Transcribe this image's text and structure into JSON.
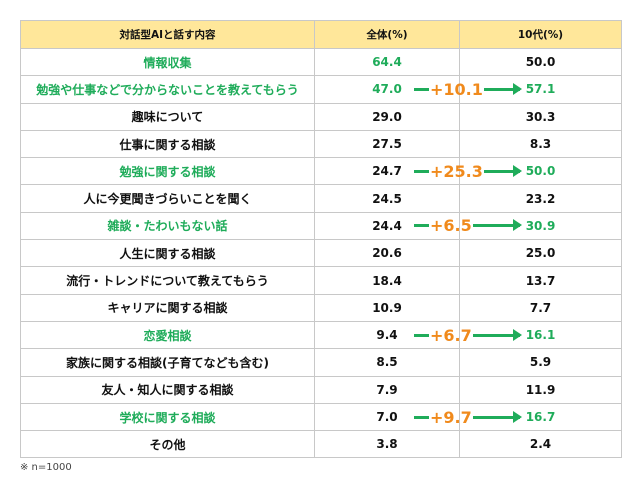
{
  "chart_data": {
    "type": "table",
    "columns": [
      "対話型AIと話す内容",
      "全体(%)",
      "10代(%)"
    ],
    "rows": [
      {
        "label": "情報収集",
        "all": "64.4",
        "teen": "50.0",
        "highlight_label": true,
        "highlight_all": true,
        "highlight_teen": false,
        "diff": ""
      },
      {
        "label": "勉強や仕事などで分からないことを教えてもらう",
        "all": "47.0",
        "teen": "57.1",
        "highlight_label": true,
        "highlight_all": true,
        "highlight_teen": true,
        "diff": "+10.1"
      },
      {
        "label": "趣味について",
        "all": "29.0",
        "teen": "30.3",
        "highlight_label": false,
        "highlight_all": false,
        "highlight_teen": false,
        "diff": ""
      },
      {
        "label": "仕事に関する相談",
        "all": "27.5",
        "teen": "8.3",
        "highlight_label": false,
        "highlight_all": false,
        "highlight_teen": false,
        "diff": ""
      },
      {
        "label": "勉強に関する相談",
        "all": "24.7",
        "teen": "50.0",
        "highlight_label": true,
        "highlight_all": false,
        "highlight_teen": true,
        "diff": "+25.3"
      },
      {
        "label": "人に今更聞きづらいことを聞く",
        "all": "24.5",
        "teen": "23.2",
        "highlight_label": false,
        "highlight_all": false,
        "highlight_teen": false,
        "diff": ""
      },
      {
        "label": "雑談・たわいもない話",
        "all": "24.4",
        "teen": "30.9",
        "highlight_label": true,
        "highlight_all": false,
        "highlight_teen": true,
        "diff": "+6.5"
      },
      {
        "label": "人生に関する相談",
        "all": "20.6",
        "teen": "25.0",
        "highlight_label": false,
        "highlight_all": false,
        "highlight_teen": false,
        "diff": ""
      },
      {
        "label": "流行・トレンドについて教えてもらう",
        "all": "18.4",
        "teen": "13.7",
        "highlight_label": false,
        "highlight_all": false,
        "highlight_teen": false,
        "diff": ""
      },
      {
        "label": "キャリアに関する相談",
        "all": "10.9",
        "teen": "7.7",
        "highlight_label": false,
        "highlight_all": false,
        "highlight_teen": false,
        "diff": ""
      },
      {
        "label": "恋愛相談",
        "all": "9.4",
        "teen": "16.1",
        "highlight_label": true,
        "highlight_all": false,
        "highlight_teen": true,
        "diff": "+6.7"
      },
      {
        "label": "家族に関する相談(子育てなども含む)",
        "all": "8.5",
        "teen": "5.9",
        "highlight_label": false,
        "highlight_all": false,
        "highlight_teen": false,
        "diff": ""
      },
      {
        "label": "友人・知人に関する相談",
        "all": "7.9",
        "teen": "11.9",
        "highlight_label": false,
        "highlight_all": false,
        "highlight_teen": false,
        "diff": ""
      },
      {
        "label": "学校に関する相談",
        "all": "7.0",
        "teen": "16.7",
        "highlight_label": true,
        "highlight_all": false,
        "highlight_teen": true,
        "diff": "+9.7"
      },
      {
        "label": "その他",
        "all": "3.8",
        "teen": "2.4",
        "highlight_label": false,
        "highlight_all": false,
        "highlight_teen": false,
        "diff": ""
      }
    ],
    "colors": {
      "header_bg": "#ffe79a",
      "highlight": "#1fac5a",
      "diff": "#f08a1c",
      "arrow": "#1fac5a"
    }
  },
  "note": "※ n=1000"
}
